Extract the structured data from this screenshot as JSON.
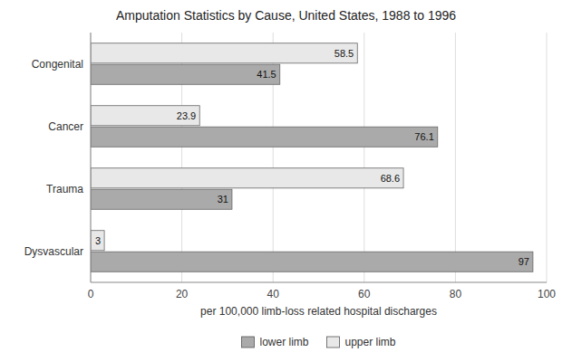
{
  "chart_data": {
    "type": "bar",
    "orientation": "horizontal",
    "title": "Amputation Statistics by Cause, United States, 1988 to 1996",
    "categories": [
      "Dysvascular",
      "Trauma",
      "Cancer",
      "Congenital"
    ],
    "series": [
      {
        "name": "lower limb",
        "color": "#aaaaaa",
        "values": [
          97,
          31,
          76.1,
          41.5
        ]
      },
      {
        "name": "upper limb",
        "color": "#e8e8e8",
        "values": [
          3,
          68.6,
          23.9,
          58.5
        ]
      }
    ],
    "xlabel": "per 100,000 limb-loss related hospital discharges",
    "xlim": [
      0,
      100
    ],
    "xticks": [
      0,
      20,
      40,
      60,
      80,
      100
    ],
    "grid": true,
    "data_labels": true,
    "legend": "bottom"
  }
}
